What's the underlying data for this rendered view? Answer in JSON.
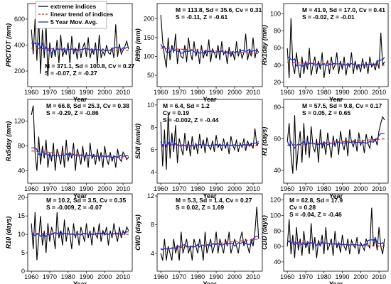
{
  "legend": [
    {
      "label": "extreme indices",
      "color": "#000000",
      "style": "solid"
    },
    {
      "label": "linear trend of indices",
      "color": "#e02020",
      "style": "dashed"
    },
    {
      "label": "5 Year Mov. Avg.",
      "color": "#1f2fd0",
      "style": "solid"
    }
  ],
  "chart_data": [
    {
      "type": "line",
      "ylabel": "PRCTOT (mm)",
      "xlabel": "Year",
      "xlim": [
        1958,
        2015
      ],
      "xticks": [
        1960,
        1970,
        1980,
        1990,
        2000,
        2010
      ],
      "ylim": [
        80,
        720
      ],
      "yticks": [
        200,
        400,
        600
      ],
      "trend": [
        375,
        358
      ],
      "smooth_center": 372,
      "smooth_amp": 25,
      "stats": [
        "M = 371.1, Sd = 100.8, Cv = 0.27",
        "S = -0.07, Z = -0.27"
      ],
      "stats_pos": "bottom-right",
      "series": [
        {
          "x_start": 1960,
          "values": [
            520,
            330,
            600,
            280,
            620,
            180,
            520,
            300,
            560,
            160,
            420,
            300,
            380,
            310,
            440,
            260,
            480,
            310,
            360,
            330,
            420,
            260,
            470,
            330,
            380,
            290,
            420,
            300,
            380,
            420,
            310,
            460,
            300,
            360,
            330,
            420,
            250,
            480,
            300,
            350,
            320,
            400,
            340,
            330,
            380,
            300,
            560,
            310,
            410,
            330,
            360,
            390,
            430,
            370
          ]
        }
      ]
    },
    {
      "type": "line",
      "ylabel": "R99p (mm)",
      "xlabel": "Year",
      "xlim": [
        1958,
        2015
      ],
      "xticks": [
        1960,
        1970,
        1980,
        1990,
        2000,
        2010
      ],
      "ylim": [
        20,
        240
      ],
      "yticks": [
        50,
        100,
        150,
        200
      ],
      "trend": [
        122,
        108
      ],
      "smooth_center": 114,
      "smooth_amp": 10,
      "stats": [
        "M = 113.8, Sd = 35.6, Cv = 0.31",
        "S = -0.11, Z = -0.61"
      ],
      "stats_pos": "top-right",
      "series": [
        {
          "x_start": 1960,
          "values": [
            210,
            140,
            100,
            70,
            150,
            90,
            130,
            110,
            160,
            80,
            120,
            100,
            95,
            130,
            85,
            150,
            110,
            90,
            140,
            100,
            120,
            80,
            130,
            95,
            115,
            100,
            145,
            85,
            120,
            110,
            95,
            130,
            90,
            140,
            105,
            115,
            80,
            125,
            100,
            110,
            90,
            140,
            100,
            120,
            95,
            110,
            160,
            90,
            115,
            100,
            150,
            95,
            120,
            110
          ]
        }
      ]
    },
    {
      "type": "line",
      "ylabel": "Rx1day (mm)",
      "xlabel": "Year",
      "xlim": [
        1958,
        2015
      ],
      "xticks": [
        1960,
        1970,
        1980,
        1990,
        2000,
        2010
      ],
      "ylim": [
        15,
        112
      ],
      "yticks": [
        20,
        40,
        60,
        80,
        100
      ],
      "trend": [
        43,
        40
      ],
      "smooth_center": 42,
      "smooth_amp": 4,
      "stats": [
        "M = 41.9, Sd = 17.0, Cv = 0.41",
        "S = -0.02, Z = -0.01"
      ],
      "stats_pos": "top-right",
      "series": [
        {
          "x_start": 1960,
          "values": [
            60,
            25,
            95,
            40,
            30,
            55,
            35,
            25,
            50,
            30,
            45,
            35,
            60,
            28,
            40,
            50,
            30,
            45,
            35,
            55,
            25,
            40,
            45,
            30,
            50,
            35,
            40,
            55,
            30,
            45,
            35,
            50,
            28,
            42,
            38,
            55,
            30,
            45,
            35,
            40,
            32,
            48,
            36,
            44,
            30,
            50,
            38,
            42,
            34,
            46,
            36,
            78,
            40,
            44
          ]
        }
      ]
    },
    {
      "type": "line",
      "ylabel": "Rx5day (mm)",
      "xlabel": "Year",
      "xlim": [
        1958,
        2015
      ],
      "xticks": [
        1960,
        1970,
        1980,
        1990,
        2000,
        2010
      ],
      "ylim": [
        20,
        155
      ],
      "yticks": [
        40,
        80,
        120
      ],
      "trend": [
        72,
        60
      ],
      "smooth_center": 66,
      "smooth_amp": 6,
      "stats": [
        "M = 66.8, Sd = 25.3, Cv = 0.38",
        "S = -0.29, Z = -0.86"
      ],
      "stats_pos": "top-right",
      "series": [
        {
          "x_start": 1960,
          "values": [
            130,
            145,
            70,
            40,
            95,
            50,
            80,
            60,
            90,
            45,
            70,
            55,
            85,
            40,
            75,
            65,
            50,
            80,
            45,
            90,
            55,
            70,
            60,
            85,
            40,
            75,
            65,
            50,
            80,
            55,
            70,
            45,
            85,
            60,
            65,
            50,
            75,
            55,
            70,
            45,
            80,
            60,
            50,
            70,
            55,
            65,
            45,
            75,
            60,
            55,
            70,
            65,
            58,
            62
          ]
        }
      ]
    },
    {
      "type": "line",
      "ylabel": "SDII (mm/d)",
      "xlabel": "Year",
      "xlim": [
        1958,
        2015
      ],
      "xticks": [
        1960,
        1970,
        1980,
        1990,
        2000,
        2010
      ],
      "ylim": [
        3,
        10.5
      ],
      "yticks": [
        4,
        6,
        8,
        10
      ],
      "trend": [
        6.45,
        6.35
      ],
      "smooth_center": 6.4,
      "smooth_amp": 0.3,
      "stats": [
        "M = 6.4, Sd = 1.2",
        "Cv = 0.19",
        "S = -0.002, Z = -0.44"
      ],
      "stats_pos": "mid-left",
      "series": [
        {
          "x_start": 1960,
          "values": [
            8.5,
            4.5,
            7.8,
            4.2,
            9.3,
            5.2,
            7.5,
            5.8,
            8.2,
            4.8,
            7.0,
            6.2,
            5.5,
            7.5,
            5.9,
            6.8,
            5.4,
            7.2,
            6.0,
            6.6,
            5.6,
            7.4,
            6.1,
            6.9,
            5.7,
            7.1,
            6.3,
            6.0,
            6.8,
            5.8,
            7.3,
            6.2,
            6.5,
            5.9,
            7.0,
            6.1,
            6.7,
            5.6,
            7.2,
            6.4,
            6.0,
            6.9,
            5.8,
            6.6,
            6.2,
            7.0,
            5.9,
            6.8,
            6.3,
            6.5,
            6.1,
            7.9,
            6.4,
            6.6
          ]
        }
      ]
    },
    {
      "type": "line",
      "ylabel": "R1 (days)",
      "xlabel": "Year",
      "xlim": [
        1958,
        2015
      ],
      "xticks": [
        1960,
        1970,
        1980,
        1990,
        2000,
        2010
      ],
      "ylim": [
        32,
        85
      ],
      "yticks": [
        40,
        60,
        80
      ],
      "trend": [
        56,
        60
      ],
      "smooth_center": 58,
      "smooth_amp": 3,
      "stats": [
        "M = 57.5, Sd = 9.8, Cv = 0.17",
        "S = 0.05, Z = 0.65"
      ],
      "stats_pos": "top-right",
      "series": [
        {
          "x_start": 1960,
          "values": [
            58,
            70,
            50,
            38,
            75,
            40,
            55,
            65,
            45,
            70,
            50,
            62,
            48,
            68,
            55,
            52,
            60,
            45,
            66,
            54,
            58,
            50,
            64,
            56,
            48,
            62,
            55,
            60,
            50,
            65,
            57,
            53,
            61,
            49,
            66,
            58,
            55,
            60,
            52,
            64,
            56,
            59,
            51,
            63,
            57,
            54,
            62,
            58,
            60,
            56,
            65,
            70,
            74,
            72
          ]
        }
      ]
    },
    {
      "type": "line",
      "ylabel": "R10 (days)",
      "xlabel": "Year",
      "xlim": [
        1958,
        2015
      ],
      "xticks": [
        1960,
        1970,
        1980,
        1990,
        2000,
        2010
      ],
      "ylim": [
        0,
        21
      ],
      "yticks": [
        0,
        5,
        10,
        15,
        20
      ],
      "trend": [
        10.3,
        10.0
      ],
      "smooth_center": 10.2,
      "smooth_amp": 1.2,
      "stats": [
        "M = 10.2, Sd = 3.5, Cv = 0.35",
        "S = -0.009, Z = -0.07"
      ],
      "stats_pos": "top-right",
      "series": [
        {
          "x_start": 1960,
          "values": [
            13,
            6,
            16,
            3,
            9,
            15,
            7,
            11,
            5,
            13,
            8,
            12,
            10,
            6,
            16,
            9,
            11,
            7,
            14,
            8,
            12,
            10,
            6,
            13,
            9,
            11,
            7,
            12,
            10,
            8,
            13,
            9,
            11,
            7,
            12,
            10,
            9,
            13,
            8,
            11,
            10,
            12,
            7,
            11,
            9,
            13,
            10,
            8,
            12,
            9,
            11,
            10,
            12,
            11
          ]
        }
      ]
    },
    {
      "type": "line",
      "ylabel": "CWD (days)",
      "xlabel": "Year",
      "xlim": [
        1958,
        2015
      ],
      "xticks": [
        1960,
        1970,
        1980,
        1990,
        2000,
        2010
      ],
      "ylim": [
        1.5,
        12.3
      ],
      "yticks": [
        4,
        8,
        12
      ],
      "trend": [
        4.5,
        6.0
      ],
      "smooth_center": 5.3,
      "smooth_amp": 0.6,
      "stats": [
        "M = 5.3, Sd = 1.4, Cv = 0.27",
        "S = 0.02, Z = 1.69"
      ],
      "stats_pos": "top-right",
      "series": [
        {
          "x_start": 1960,
          "values": [
            4,
            3,
            6,
            3,
            5,
            4,
            3,
            6,
            4,
            5,
            3,
            7,
            4,
            5,
            6,
            4,
            5,
            3,
            6,
            5,
            4,
            6,
            5,
            3,
            7,
            4,
            5,
            6,
            4,
            5,
            7,
            4,
            6,
            5,
            4,
            6,
            5,
            7,
            4,
            5,
            6,
            5,
            4,
            6,
            7,
            5,
            6,
            5,
            4,
            6,
            5,
            7,
            10.5,
            6
          ]
        }
      ]
    },
    {
      "type": "line",
      "ylabel": "CDD (days)",
      "xlabel": "Year",
      "xlim": [
        1958,
        2015
      ],
      "xticks": [
        1960,
        1970,
        1980,
        1990,
        2000,
        2010
      ],
      "ylim": [
        28,
        128
      ],
      "yticks": [
        40,
        60,
        80,
        100,
        120
      ],
      "trend": [
        66,
        60
      ],
      "smooth_center": 63,
      "smooth_amp": 5,
      "stats": [
        "M = 62.8, Sd = 17.9",
        "Cv = 0.28",
        "S = -0.04, Z = -0.46"
      ],
      "stats_pos": "mid-left",
      "series": [
        {
          "x_start": 1960,
          "values": [
            60,
            95,
            50,
            75,
            45,
            85,
            55,
            70,
            48,
            80,
            58,
            65,
            50,
            90,
            55,
            72,
            45,
            68,
            60,
            75,
            50,
            85,
            55,
            62,
            70,
            48,
            80,
            58,
            65,
            52,
            75,
            60,
            55,
            70,
            50,
            68,
            62,
            58,
            72,
            50,
            65,
            60,
            55,
            70,
            62,
            58,
            110,
            60,
            72,
            55,
            85,
            60,
            50,
            70
          ]
        }
      ]
    }
  ]
}
